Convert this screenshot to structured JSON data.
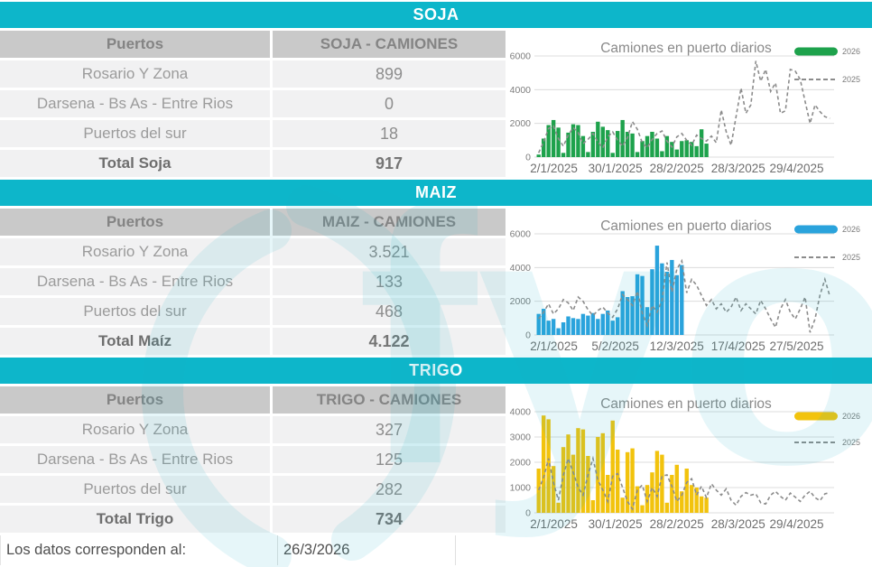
{
  "accent_teal": "#0db6ca",
  "watermark_text": "fyo",
  "sections": [
    {
      "title": "SOJA",
      "col1": "Puertos",
      "col2": "SOJA - CAMIONES",
      "rows": [
        {
          "label": "Rosario Y Zona",
          "value": "899"
        },
        {
          "label": "Darsena - Bs As - Entre Rios",
          "value": "0"
        },
        {
          "label": "Puertos del sur",
          "value": "18"
        }
      ],
      "total": {
        "label": "Total Soja",
        "value": "917"
      }
    },
    {
      "title": "MAIZ",
      "col1": "Puertos",
      "col2": "MAIZ - CAMIONES",
      "rows": [
        {
          "label": "Rosario Y Zona",
          "value": "3.521"
        },
        {
          "label": "Darsena - Bs As - Entre Rios",
          "value": "133"
        },
        {
          "label": "Puertos del sur",
          "value": "468"
        }
      ],
      "total": {
        "label": "Total Maíz",
        "value": "4.122"
      }
    },
    {
      "title": "TRIGO",
      "col1": "Puertos",
      "col2": "TRIGO - CAMIONES",
      "rows": [
        {
          "label": "Rosario Y Zona",
          "value": "327"
        },
        {
          "label": "Darsena - Bs As - Entre Rios",
          "value": "125"
        },
        {
          "label": "Puertos del sur",
          "value": "282"
        }
      ],
      "total": {
        "label": "Total Trigo",
        "value": "734"
      }
    }
  ],
  "footer": {
    "label": "Los datos corresponden al:",
    "date": "26/3/2026"
  },
  "chart_data": [
    {
      "name": "soja",
      "type": "bar+line",
      "title": "Camiones en puerto diarios",
      "legend": [
        "2026",
        "2025"
      ],
      "legend_y": [
        23,
        54
      ],
      "bar_color": "#1ea24c",
      "line_color": "#8c8c8c",
      "ylim": [
        0,
        6000
      ],
      "yticks": [
        0,
        2000,
        4000,
        6000
      ],
      "x_tick_labels": [
        "2/1/2025",
        "30/1/2025",
        "28/2/2025",
        "28/3/2025",
        "29/4/2025"
      ],
      "series": [
        {
          "name": "2026",
          "style": "bar",
          "values": [
            150,
            1100,
            1900,
            2200,
            1750,
            250,
            1450,
            1950,
            1900,
            1250,
            300,
            1500,
            2100,
            1800,
            1600,
            250,
            1550,
            2200,
            1500,
            1400,
            300,
            950,
            1250,
            1500,
            1100,
            350,
            1250,
            900,
            450,
            950,
            1000,
            900,
            650,
            1650,
            800
          ]
        },
        {
          "name": "2025",
          "style": "dashed-line",
          "values": [
            250,
            900,
            1700,
            1850,
            1100,
            650,
            1300,
            1750,
            1450,
            800,
            1050,
            1400,
            900,
            550,
            1200,
            1500,
            1000,
            650,
            1150,
            2100,
            1650,
            850,
            550,
            1050,
            1400,
            1550,
            950,
            600,
            1200,
            1400,
            1000,
            700,
            1300,
            1100,
            950,
            1250,
            850,
            2800,
            1500,
            700,
            2400,
            4100,
            2600,
            3100,
            5700,
            4500,
            5200,
            3900,
            4400,
            2600,
            2750,
            5200,
            5100,
            4600,
            3300,
            2000,
            3100,
            2700,
            2400,
            2300
          ]
        }
      ]
    },
    {
      "name": "maiz",
      "type": "bar+line",
      "title": "Camiones en puerto diarios",
      "legend": [
        "2026",
        "2025"
      ],
      "legend_y": [
        23,
        54
      ],
      "bar_color": "#2aa3dc",
      "line_color": "#8c8c8c",
      "ylim": [
        0,
        6000
      ],
      "yticks": [
        0,
        2000,
        4000,
        6000
      ],
      "x_tick_labels": [
        "2/1/2025",
        "5/2/2025",
        "12/3/2025",
        "17/4/2025",
        "27/5/2025"
      ],
      "series": [
        {
          "name": "2026",
          "style": "bar",
          "values": [
            1250,
            1550,
            850,
            950,
            400,
            750,
            1100,
            1000,
            950,
            1250,
            1150,
            1300,
            950,
            1250,
            1450,
            850,
            1050,
            2600,
            2250,
            2300,
            3600,
            3500,
            1650,
            3900,
            5300,
            4250,
            3750,
            4450,
            3550,
            4150
          ]
        },
        {
          "name": "2025",
          "style": "dashed-line",
          "values": [
            950,
            1350,
            1850,
            1250,
            1550,
            2100,
            1900,
            1450,
            2250,
            2000,
            1500,
            1150,
            1450,
            1650,
            1300,
            1050,
            1550,
            2400,
            2100,
            1750,
            2600,
            1300,
            550,
            1750,
            1350,
            2050,
            4300,
            2550,
            3900,
            4400,
            2500,
            3300,
            2950,
            2350,
            1750,
            2100,
            1550,
            1850,
            1350,
            1650,
            2250,
            1450,
            1850,
            1550,
            1250,
            2050,
            1550,
            950,
            450,
            1550,
            2100,
            1350,
            950,
            1550,
            2250,
            150,
            950,
            2350,
            3300,
            2300
          ]
        }
      ]
    },
    {
      "name": "trigo",
      "type": "bar+line",
      "title": "Camiones en puerto diarios",
      "legend": [
        "2026",
        "2025"
      ],
      "legend_y": [
        33,
        62
      ],
      "bar_color": "#f2c30d",
      "line_color": "#8c8c8c",
      "ylim": [
        0,
        4000
      ],
      "yticks": [
        0,
        1000,
        2000,
        3000,
        4000
      ],
      "x_tick_labels": [
        "2/1/2025",
        "30/1/2025",
        "28/2/2025",
        "28/3/2025",
        "29/4/2025"
      ],
      "series": [
        {
          "name": "2026",
          "style": "bar",
          "values": [
            1750,
            3850,
            3700,
            1850,
            400,
            2600,
            3100,
            2300,
            3350,
            3300,
            2250,
            500,
            3000,
            3150,
            1500,
            3650,
            2500,
            600,
            2400,
            2550,
            1050,
            300,
            1100,
            1600,
            2450,
            2300,
            400,
            1500,
            1900,
            850,
            1750,
            1100,
            1000,
            650,
            600
          ]
        },
        {
          "name": "2025",
          "style": "dashed-line",
          "values": [
            900,
            1400,
            2150,
            1200,
            500,
            1500,
            2150,
            1600,
            1000,
            700,
            1500,
            2150,
            1300,
            900,
            450,
            1450,
            1550,
            1000,
            450,
            150,
            900,
            1100,
            450,
            1000,
            650,
            1450,
            1500,
            1050,
            450,
            700,
            1200,
            1350,
            700,
            1050,
            600,
            1150,
            900,
            700,
            950,
            500,
            300,
            650,
            800,
            700,
            750,
            400,
            350,
            700,
            850,
            650,
            500,
            780,
            620,
            450,
            700,
            850,
            600,
            480,
            750,
            800
          ]
        }
      ]
    }
  ]
}
